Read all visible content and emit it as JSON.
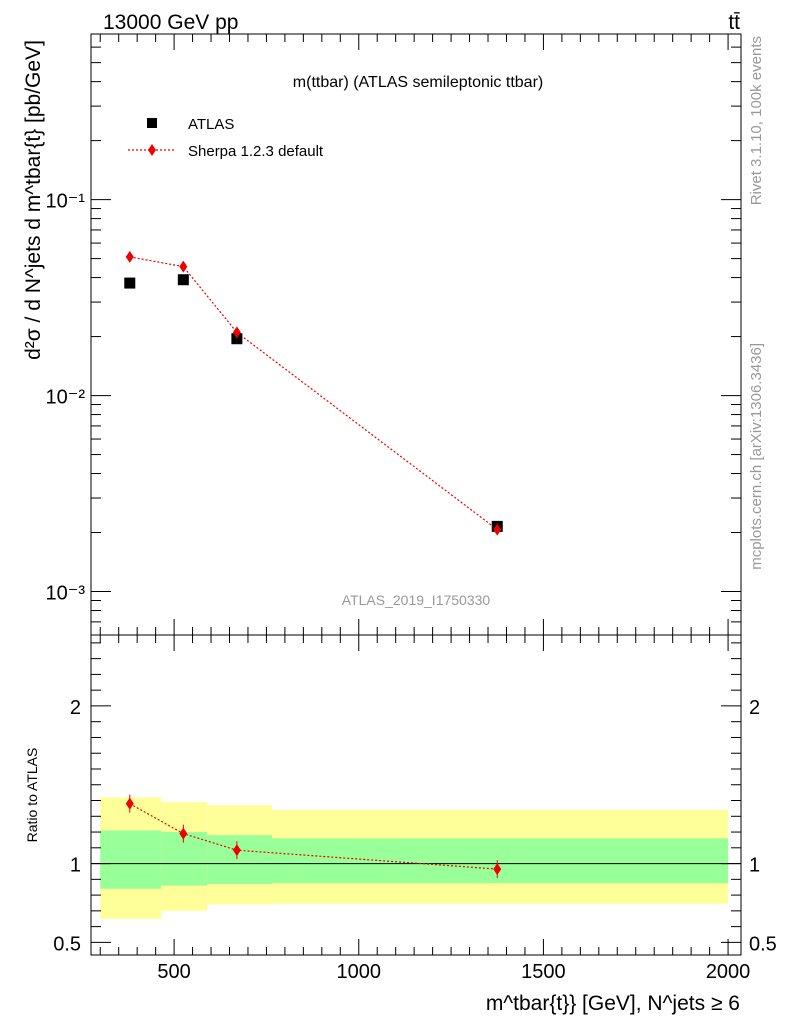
{
  "header": {
    "left": "13000 GeV pp",
    "right": "tt̄"
  },
  "side_text": {
    "rivet": "Rivet 3.1.10,  100k events",
    "mcplots": "mcplots.cern.ch [arXiv:1306.3436]"
  },
  "colors": {
    "data": "#000000",
    "mc": "#ee0000",
    "band_inner": "#99ff99",
    "band_outer": "#ffff99",
    "watermark": "#999999"
  },
  "chart_data": [
    {
      "type": "scatter",
      "title": "m(ttbar) (ATLAS semileptonic ttbar)",
      "ylabel": "d²σ / d N^jets d m^tbar{t} [pb/GeV]",
      "yscale": "log",
      "ylim": [
        0.0006,
        0.7
      ],
      "xlim": [
        275,
        2035
      ],
      "ytick_labels": [
        "10⁻³",
        "10⁻²",
        "10⁻¹"
      ],
      "watermark": "ATLAS_2019_I1750330",
      "legend_position": "top-left",
      "series": [
        {
          "name": "ATLAS",
          "marker": "square",
          "x": [
            380,
            525,
            670,
            1375
          ],
          "y": [
            0.0375,
            0.039,
            0.0195,
            0.00215
          ]
        },
        {
          "name": "Sherpa 1.2.3 default",
          "marker": "diamond",
          "line": "dotted",
          "x": [
            380,
            525,
            670,
            1375
          ],
          "y": [
            0.051,
            0.0455,
            0.021,
            0.00207
          ]
        }
      ]
    },
    {
      "type": "scatter",
      "ylabel": "Ratio to ATLAS",
      "xlabel": "m^tbar{t}} [GeV], N^jets ≥ 6",
      "ylim": [
        0.42,
        2.45
      ],
      "xlim": [
        275,
        2035
      ],
      "x_ticks": [
        500,
        1000,
        1500,
        2000
      ],
      "y_ticks": [
        0.5,
        1,
        2
      ],
      "bins": [
        {
          "x0": 300,
          "x1": 465,
          "inner": [
            0.84,
            1.21
          ],
          "outer": [
            0.65,
            1.42
          ]
        },
        {
          "x0": 465,
          "x1": 590,
          "inner": [
            0.86,
            1.2
          ],
          "outer": [
            0.7,
            1.39
          ]
        },
        {
          "x0": 590,
          "x1": 765,
          "inner": [
            0.87,
            1.18
          ],
          "outer": [
            0.74,
            1.37
          ]
        },
        {
          "x0": 765,
          "x1": 2000,
          "inner": [
            0.875,
            1.16
          ],
          "outer": [
            0.745,
            1.34
          ]
        }
      ],
      "series": [
        {
          "name": "Sherpa 1.2.3 default",
          "x": [
            380,
            525,
            670,
            1375
          ],
          "y": [
            1.38,
            1.19,
            1.085,
            0.965
          ]
        }
      ]
    }
  ]
}
